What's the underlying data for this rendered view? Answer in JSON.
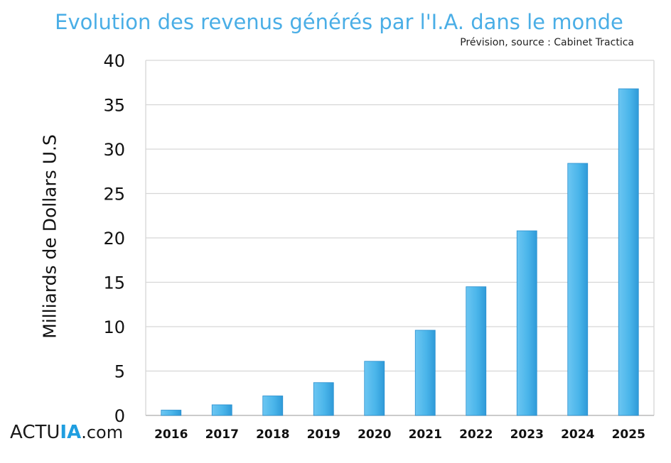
{
  "chart_data": {
    "type": "bar",
    "title": "Evolution des revenus générés par l'I.A. dans le monde",
    "subtitle": "Prévision, source : Cabinet Tractica",
    "xlabel": "",
    "ylabel": "Milliards de Dollars U.S",
    "categories": [
      "2016",
      "2017",
      "2018",
      "2019",
      "2020",
      "2021",
      "2022",
      "2023",
      "2024",
      "2025"
    ],
    "values": [
      0.6,
      1.2,
      2.2,
      3.7,
      6.1,
      9.6,
      14.5,
      20.8,
      28.4,
      36.8
    ],
    "ylim": [
      0,
      40
    ],
    "yticks": [
      "0",
      "5",
      "10",
      "15",
      "20",
      "25",
      "30",
      "35",
      "40"
    ],
    "grid": true,
    "legend": "none",
    "bar_color": "#4ab5ea"
  },
  "branding": {
    "logo_part1": "ACTU",
    "logo_part2": "IA",
    "logo_part3": ".com"
  }
}
